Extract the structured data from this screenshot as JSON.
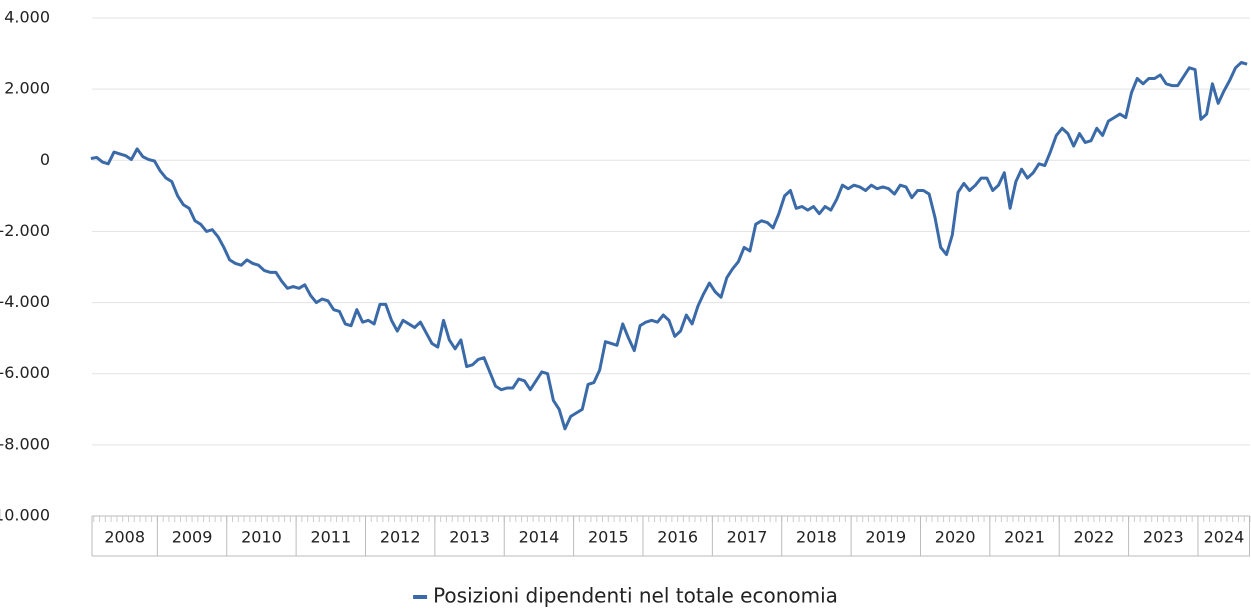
{
  "chart_data": {
    "type": "line",
    "categories": [
      "2008",
      null,
      null,
      null,
      null,
      null,
      null,
      null,
      null,
      null,
      null,
      null,
      "2009",
      null,
      null,
      null,
      null,
      null,
      null,
      null,
      null,
      null,
      null,
      null,
      "2010",
      null,
      null,
      null,
      null,
      null,
      null,
      null,
      null,
      null,
      null,
      null,
      "2011",
      null,
      null,
      null,
      null,
      null,
      null,
      null,
      null,
      null,
      null,
      null,
      "2012",
      null,
      null,
      null,
      null,
      null,
      null,
      null,
      null,
      null,
      null,
      null,
      "2013",
      null,
      null,
      null,
      null,
      null,
      null,
      null,
      null,
      null,
      null,
      null,
      "2014",
      null,
      null,
      null,
      null,
      null,
      null,
      null,
      null,
      null,
      null,
      null,
      "2015",
      null,
      null,
      null,
      null,
      null,
      null,
      null,
      null,
      null,
      null,
      null,
      "2016",
      null,
      null,
      null,
      null,
      null,
      null,
      null,
      null,
      null,
      null,
      null,
      "2017",
      null,
      null,
      null,
      null,
      null,
      null,
      null,
      null,
      null,
      null,
      null,
      "2018",
      null,
      null,
      null,
      null,
      null,
      null,
      null,
      null,
      null,
      null,
      null,
      "2019",
      null,
      null,
      null,
      null,
      null,
      null,
      null,
      null,
      null,
      null,
      null,
      "2020",
      null,
      null,
      null,
      null,
      null,
      null,
      null,
      null,
      null,
      null,
      null,
      "2021",
      null,
      null,
      null,
      null,
      null,
      null,
      null,
      null,
      null,
      null,
      null,
      "2022",
      null,
      null,
      null,
      null,
      null,
      null,
      null,
      null,
      null,
      null,
      null,
      "2023",
      null,
      null,
      null,
      null,
      null,
      null,
      null,
      null,
      null,
      null,
      null,
      "2024",
      null,
      null,
      null,
      null,
      null,
      null,
      null,
      null
    ],
    "series": [
      {
        "name": "Posizioni dipendenti nel totale economia",
        "color": "#3a6aa8",
        "values": [
          50,
          80,
          -50,
          -100,
          230,
          180,
          130,
          20,
          320,
          100,
          20,
          -20,
          -300,
          -500,
          -600,
          -1000,
          -1250,
          -1350,
          -1700,
          -1800,
          -2000,
          -1950,
          -2150,
          -2450,
          -2800,
          -2900,
          -2950,
          -2800,
          -2900,
          -2950,
          -3100,
          -3150,
          -3150,
          -3400,
          -3600,
          -3550,
          -3600,
          -3500,
          -3800,
          -4000,
          -3900,
          -3950,
          -4200,
          -4250,
          -4600,
          -4650,
          -4200,
          -4550,
          -4500,
          -4600,
          -4050,
          -4050,
          -4500,
          -4800,
          -4500,
          -4600,
          -4700,
          -4550,
          -4850,
          -5150,
          -5250,
          -4500,
          -5050,
          -5300,
          -5050,
          -5800,
          -5750,
          -5600,
          -5550,
          -5950,
          -6350,
          -6450,
          -6400,
          -6400,
          -6150,
          -6200,
          -6450,
          -6200,
          -5950,
          -6000,
          -6750,
          -7000,
          -7550,
          -7200,
          -7100,
          -7000,
          -6300,
          -6250,
          -5900,
          -5100,
          -5150,
          -5200,
          -4600,
          -5000,
          -5350,
          -4650,
          -4550,
          -4500,
          -4550,
          -4350,
          -4500,
          -4950,
          -4800,
          -4350,
          -4600,
          -4100,
          -3750,
          -3450,
          -3700,
          -3850,
          -3300,
          -3050,
          -2850,
          -2450,
          -2550,
          -1800,
          -1700,
          -1750,
          -1900,
          -1500,
          -1000,
          -850,
          -1350,
          -1300,
          -1400,
          -1300,
          -1500,
          -1300,
          -1400,
          -1100,
          -700,
          -800,
          -700,
          -750,
          -850,
          -700,
          -800,
          -750,
          -800,
          -950,
          -700,
          -750,
          -1050,
          -850,
          -850,
          -950,
          -1600,
          -2450,
          -2650,
          -2100,
          -900,
          -650,
          -850,
          -700,
          -500,
          -500,
          -850,
          -700,
          -350,
          -1350,
          -600,
          -250,
          -500,
          -350,
          -100,
          -150,
          250,
          700,
          900,
          750,
          400,
          750,
          500,
          550,
          900,
          700,
          1100,
          1200,
          1300,
          1200,
          1900,
          2300,
          2150,
          2300,
          2300,
          2400,
          2150,
          2100,
          2100,
          2350,
          2600,
          2550,
          1150,
          1300,
          2150,
          1600,
          1950,
          2250,
          2600,
          2750,
          2700
        ]
      }
    ],
    "ylim": [
      -10000,
      4000
    ],
    "yticks": [
      {
        "value": -10000,
        "label": "-10.000"
      },
      {
        "value": -8000,
        "label": "-8.000"
      },
      {
        "value": -6000,
        "label": "-6.000"
      },
      {
        "value": -4000,
        "label": "-4.000"
      },
      {
        "value": -2000,
        "label": "-2.000"
      },
      0,
      {
        "value": 2000,
        "label": "2.000"
      },
      {
        "value": 4000,
        "label": "4.000"
      }
    ],
    "grid": true
  }
}
